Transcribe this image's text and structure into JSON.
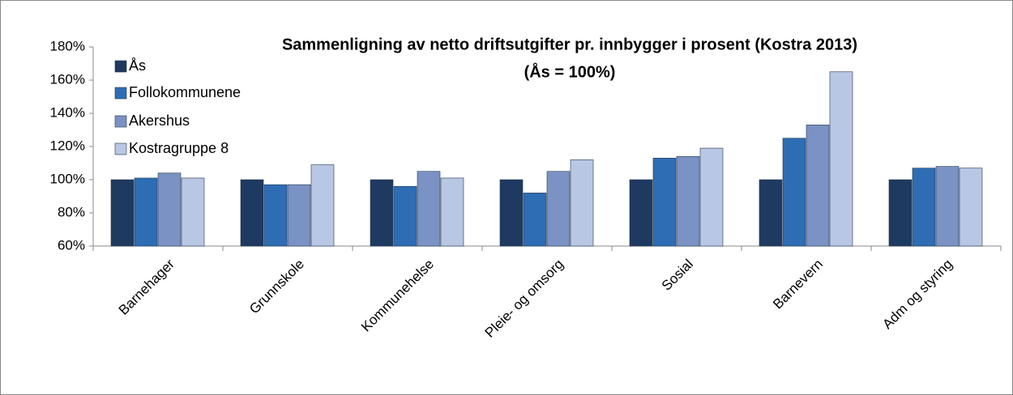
{
  "chart_data": {
    "type": "bar",
    "title": "Sammenligning av netto driftsutgifter pr. innbygger i prosent (Kostra 2013)",
    "subtitle": "(Ås = 100%)",
    "categories": [
      "Barnehager",
      "Grunnskole",
      "Kommunehelse",
      "Pleie- og omsorg",
      "Sosial",
      "Barnevern",
      "Adm og styring"
    ],
    "series": [
      {
        "name": "Ås",
        "color": "#1f3a60",
        "values": [
          100,
          100,
          100,
          100,
          100,
          100,
          100
        ]
      },
      {
        "name": "Follokommunene",
        "color": "#2e6db4",
        "values": [
          101,
          97,
          96,
          92,
          113,
          125,
          107
        ]
      },
      {
        "name": "Akershus",
        "color": "#7a93c4",
        "values": [
          104,
          97,
          105,
          105,
          114,
          133,
          108
        ]
      },
      {
        "name": "Kostragruppe 8",
        "color": "#b8c7e3",
        "values": [
          101,
          109,
          101,
          112,
          119,
          165,
          107
        ]
      }
    ],
    "ylim": [
      60,
      180
    ],
    "yticks": [
      {
        "value": 60,
        "label": "60%"
      },
      {
        "value": 80,
        "label": "80%"
      },
      {
        "value": 100,
        "label": "100%"
      },
      {
        "value": 120,
        "label": "120%"
      },
      {
        "value": 140,
        "label": "140%"
      },
      {
        "value": 160,
        "label": "160%"
      },
      {
        "value": 180,
        "label": "180%"
      }
    ],
    "legend": "top-left"
  }
}
